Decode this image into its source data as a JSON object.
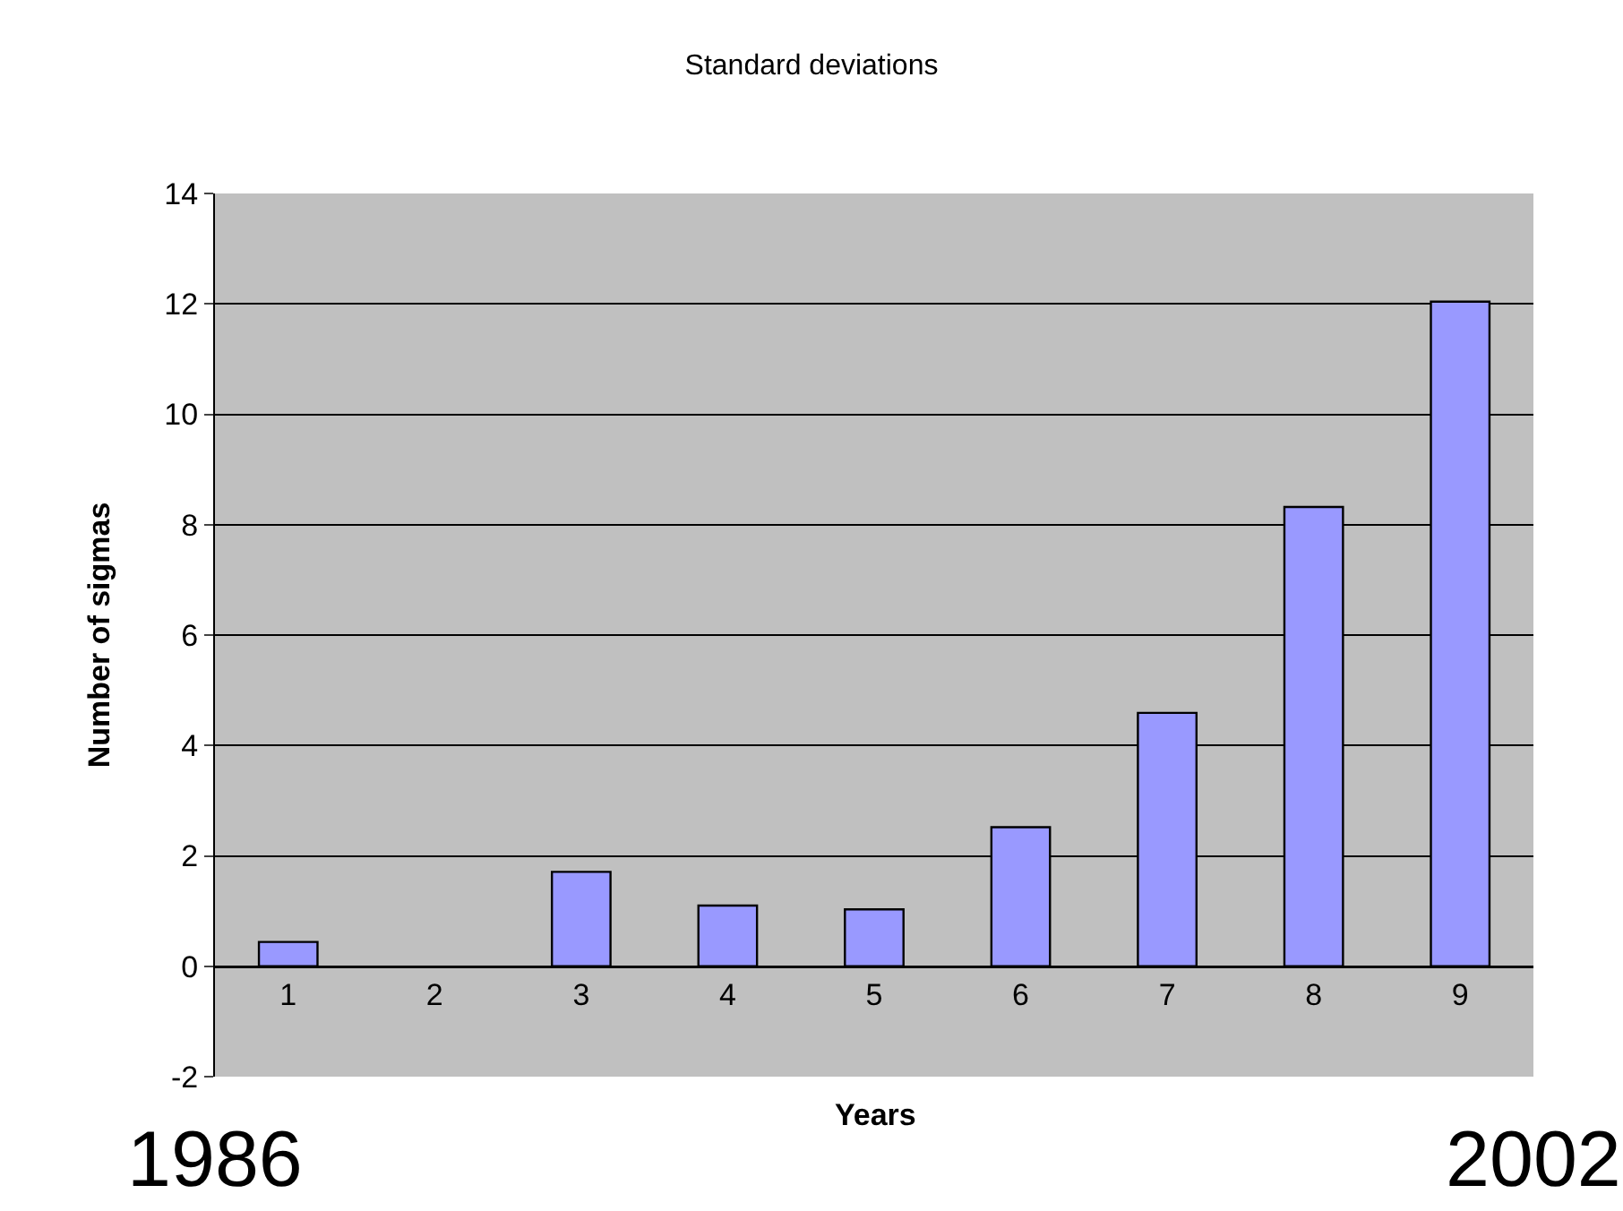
{
  "chart_data": {
    "type": "bar",
    "title": "Standard deviations",
    "xlabel": "Years",
    "ylabel": "Number of sigmas",
    "categories": [
      "1",
      "2",
      "3",
      "4",
      "5",
      "6",
      "7",
      "8",
      "9"
    ],
    "series": [
      {
        "color": "#9999ff",
        "values": [
          0.44,
          null,
          1.71,
          1.1,
          1.03,
          2.52,
          4.59,
          8.32,
          12.04
        ]
      }
    ],
    "ylim": [
      -2,
      14
    ],
    "yticks": [
      -2,
      0,
      2,
      4,
      6,
      8,
      10,
      12,
      14
    ],
    "grid": "y",
    "legend": false,
    "annotations": [
      "1986",
      "2002"
    ]
  }
}
